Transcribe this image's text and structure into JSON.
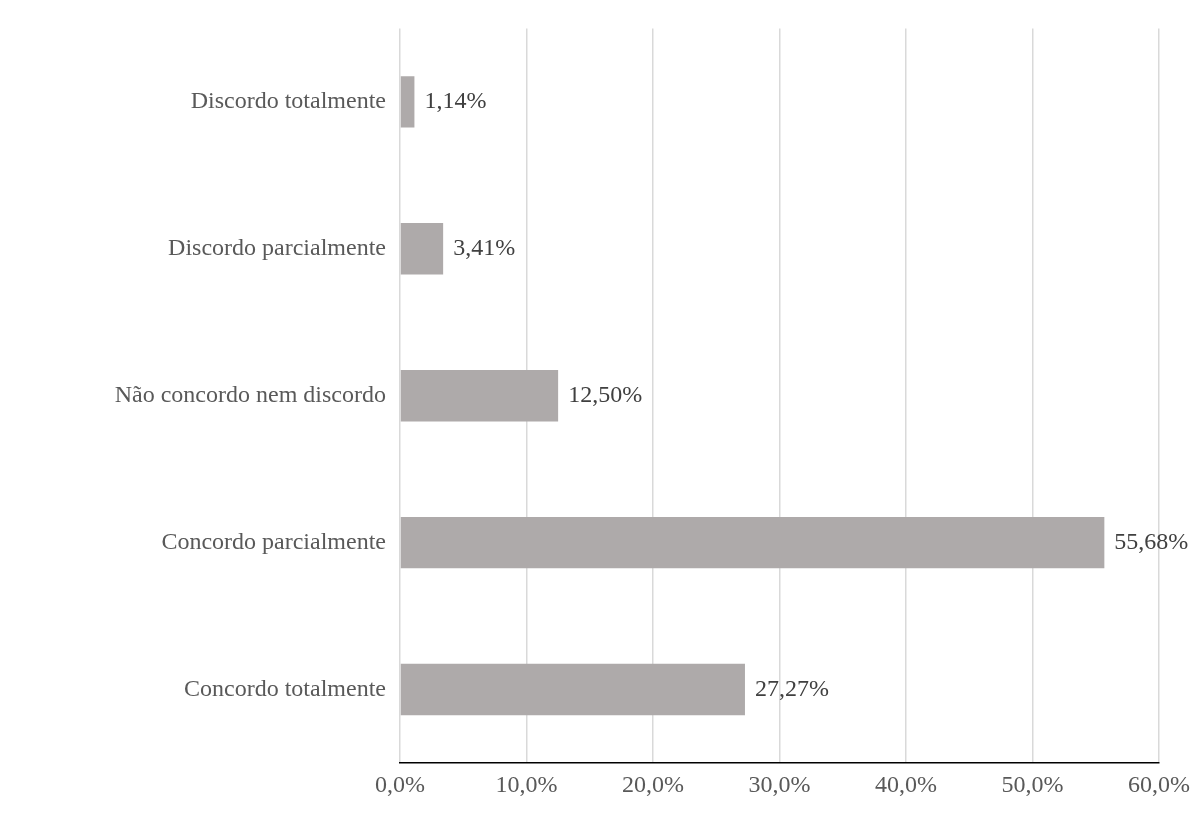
{
  "chart_data": {
    "type": "bar",
    "orientation": "horizontal",
    "categories": [
      "Discordo totalmente",
      "Discordo parcialmente",
      "Não concordo nem discordo",
      "Concordo parcialmente",
      "Concordo totalmente"
    ],
    "values": [
      1.14,
      3.41,
      12.5,
      55.68,
      27.27
    ],
    "value_labels": [
      "1,14%",
      "3,41%",
      "12,50%",
      "55,68%",
      "27,27%"
    ],
    "color": "#aeaaaa",
    "xlim": [
      0,
      60
    ],
    "xticks": [
      {
        "value": 0,
        "label": "0,0%"
      },
      {
        "value": 10,
        "label": "10,0%"
      },
      {
        "value": 20,
        "label": "20,0%"
      },
      {
        "value": 30,
        "label": "30,0%"
      },
      {
        "value": 40,
        "label": "40,0%"
      },
      {
        "value": 50,
        "label": "50,0%"
      },
      {
        "value": 60,
        "label": "60,0%"
      }
    ],
    "grid": "x",
    "legend": false
  }
}
